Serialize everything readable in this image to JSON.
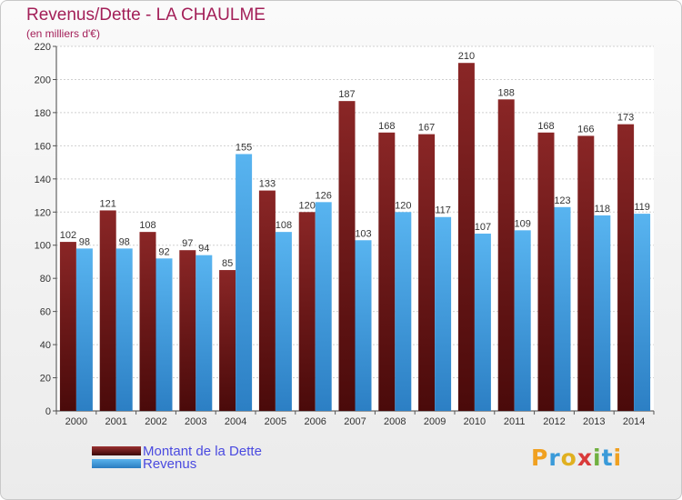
{
  "header": {
    "title": "Revenus/Dette - LA CHAULME",
    "subtitle": "(en milliers d'€)"
  },
  "legend": {
    "debt_label": "Montant de la Dette",
    "revenue_label": "Revenus"
  },
  "brand": {
    "letters": [
      "P",
      "r",
      "o",
      "x",
      "i",
      "t",
      "i"
    ],
    "letter_colors": [
      "#f0a020",
      "#3a9ad9",
      "#e0b020",
      "#d93a3a",
      "#70b040",
      "#3a9ad9",
      "#f0a020"
    ]
  },
  "colors": {
    "debt": "#7a1f1f",
    "revenue": "#4aa8e8",
    "title": "#a31f58"
  },
  "chart_data": {
    "type": "bar",
    "title": "Revenus/Dette - LA CHAULME",
    "subtitle": "(en milliers d'€)",
    "categories": [
      "2000",
      "2001",
      "2002",
      "2003",
      "2004",
      "2005",
      "2006",
      "2007",
      "2008",
      "2009",
      "2010",
      "2011",
      "2012",
      "2013",
      "2014"
    ],
    "series": [
      {
        "name": "Montant de la Dette",
        "values": [
          102,
          121,
          108,
          97,
          85,
          133,
          120,
          187,
          168,
          167,
          210,
          188,
          168,
          166,
          173
        ]
      },
      {
        "name": "Revenus",
        "values": [
          98,
          98,
          92,
          94,
          155,
          108,
          126,
          103,
          120,
          117,
          107,
          109,
          123,
          118,
          119
        ]
      }
    ],
    "yticks": [
      "0",
      "20",
      "40",
      "60",
      "80",
      "100",
      "120",
      "140",
      "160",
      "180",
      "200",
      "220"
    ],
    "ylim": [
      0,
      220
    ],
    "grid": true,
    "legend_position": "bottom-left"
  }
}
